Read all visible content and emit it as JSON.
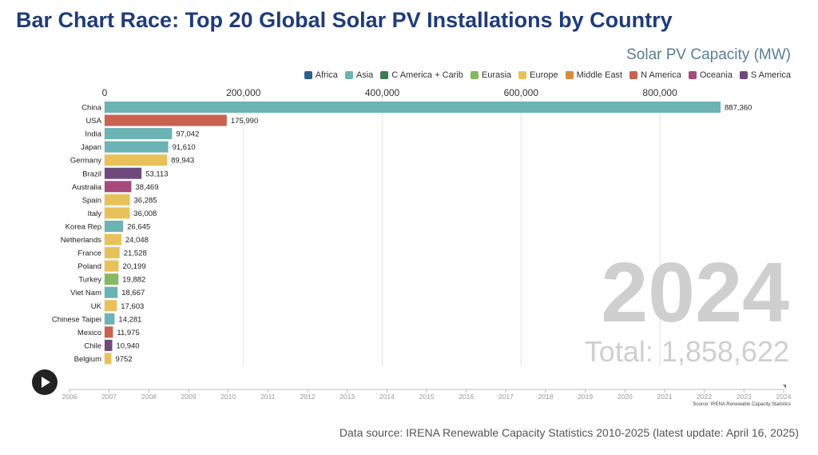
{
  "page": {
    "title": "Bar Chart Race: Top 20 Global Solar PV Installations by Country",
    "subtitle": "Solar PV Capacity (MW)",
    "small_source": "Source: IRENA Renewable Capacity Statistics",
    "footer_source": "Data source: IRENA Renewable Capacity Statistics 2010-2025 (latest update: April 16, 2025)"
  },
  "legend": [
    {
      "name": "Africa",
      "color": "#2e5f8a"
    },
    {
      "name": "Asia",
      "color": "#6bb3b5"
    },
    {
      "name": "C America + Carib",
      "color": "#3c7d52"
    },
    {
      "name": "Eurasia",
      "color": "#86b862"
    },
    {
      "name": "Europe",
      "color": "#e9c15a"
    },
    {
      "name": "Middle East",
      "color": "#d98a3d"
    },
    {
      "name": "N America",
      "color": "#c9624f"
    },
    {
      "name": "Oceania",
      "color": "#a7497d"
    },
    {
      "name": "S America",
      "color": "#6d4a7b"
    }
  ],
  "controls": {
    "play_icon": "play-icon"
  },
  "chart_data": {
    "type": "bar",
    "orientation": "horizontal",
    "title": "Bar Chart Race: Top 20 Global Solar PV Installations by Country",
    "subtitle": "Solar PV Capacity (MW)",
    "year": "2024",
    "total_label": "Total: 1,858,622",
    "x_ticks": [
      0,
      200000,
      400000,
      600000,
      800000
    ],
    "x_tick_labels": [
      "0",
      "200,000",
      "400,000",
      "600,000",
      "800,000"
    ],
    "xlim": [
      0,
      887360
    ],
    "grid": true,
    "legend_position": "top-right",
    "categories": [
      "China",
      "USA",
      "India",
      "Japan",
      "Germany",
      "Brazil",
      "Australia",
      "Spain",
      "Italy",
      "Korea Rep",
      "Netherlands",
      "France",
      "Poland",
      "Turkey",
      "Viet Nam",
      "UK",
      "Chinese Taipei",
      "Mexico",
      "Chile",
      "Belgium"
    ],
    "values": [
      887360,
      175990,
      97042,
      91610,
      89943,
      53113,
      38469,
      36285,
      36008,
      26645,
      24048,
      21528,
      20199,
      19882,
      18667,
      17603,
      14281,
      11975,
      10940,
      9752
    ],
    "value_labels": [
      "887,360",
      "175,990",
      "97,042",
      "91,610",
      "89,943",
      "53,113",
      "38,469",
      "36,285",
      "36,008",
      "26,645",
      "24,048",
      "21,528",
      "20,199",
      "19,882",
      "18,667",
      "17,603",
      "14,281",
      "11,975",
      "10,940",
      "9752"
    ],
    "regions": [
      "Asia",
      "N America",
      "Asia",
      "Asia",
      "Europe",
      "S America",
      "Oceania",
      "Europe",
      "Europe",
      "Asia",
      "Europe",
      "Europe",
      "Europe",
      "Eurasia",
      "Asia",
      "Europe",
      "Asia",
      "N America",
      "S America",
      "Europe"
    ],
    "timeline": {
      "years": [
        "2006",
        "2007",
        "2008",
        "2009",
        "2010",
        "2011",
        "2012",
        "2013",
        "2014",
        "2015",
        "2016",
        "2017",
        "2018",
        "2019",
        "2020",
        "2021",
        "2022",
        "2023",
        "2024"
      ],
      "current": "2024"
    }
  }
}
